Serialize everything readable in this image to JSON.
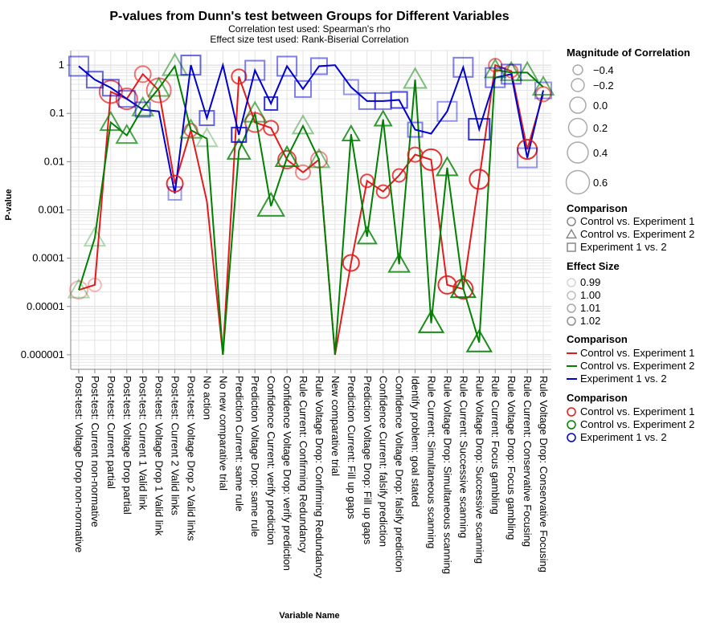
{
  "chart_data": {
    "type": "line",
    "title": "P-values from Dunn's test between Groups for Different Variables",
    "subtitle": [
      "Correlation test used: Spearman's rho",
      "Effect size test used: Rank-Biserial Correlation"
    ],
    "xlabel": "Variable Name",
    "ylabel": "P-value",
    "yscale": "log",
    "ylim": [
      5e-07,
      2
    ],
    "y_ticks": [
      1e-06,
      1e-05,
      0.0001,
      0.001,
      0.01,
      0.1,
      1
    ],
    "y_tick_labels": [
      "0.000001",
      "0.00001",
      "0.0001",
      "0.001",
      "0.01",
      "0.1",
      "1"
    ],
    "grid": true,
    "categories": [
      "Post-test: Voltage Drop non-normative",
      "Post-test: Current non-normative",
      "Post-test: Current partial",
      "Post-test: Voltage Drop partial",
      "Post-test: Current 1 Valid link",
      "Post-test: Voltage Drop 1 Valid link",
      "Post-test: Current 2 Valid links",
      "Post-test: Voltage Drop 2 Valid links",
      "No action",
      "No new comparative trial",
      "Prediction Current: same rule",
      "Prediction Voltage Drop: same rule",
      "Confidence Current: verify prediction",
      "Confidence Voltage Drop: verify prediction",
      "Rule Current: Confirming Redundancy",
      "Rule Voltage Drop: Confirming Redundancy",
      "New comparative trial",
      "Prediction Current: Fill up gaps",
      "Prediction Voltage Drop: Fill up gaps",
      "Confidence Current: falsify prediction",
      "Confidence Voltage Drop: falsify prediction",
      "Identify problem: goal stated",
      "Rule Current: Simultaneous scanning",
      "Rule Voltage Drop: Simultaneous scanning",
      "Rule Current: Successive scanning",
      "Rule Voltage Drop: Successive scanning",
      "Rule Current: Focus gambling",
      "Rule Voltage Drop: Focus gambling",
      "Rule Current: Conservative Focusing",
      "Rule Voltage Drop: Conservative Focusing"
    ],
    "series": [
      {
        "name": "Control vs. Experiment 1",
        "color": "#e41a1c",
        "marker": "circle",
        "values": [
          2.2e-05,
          2.8e-05,
          0.28,
          0.2,
          0.65,
          0.3,
          0.0035,
          0.045,
          0.0015,
          1e-06,
          0.58,
          0.065,
          0.05,
          0.011,
          0.006,
          0.011,
          1e-06,
          8e-05,
          0.004,
          0.0024,
          0.0052,
          0.014,
          0.011,
          2.8e-05,
          2.3e-05,
          0.0043,
          1.0,
          0.75,
          0.018,
          0.25
        ],
        "marker_visible": [
          true,
          true,
          true,
          true,
          true,
          true,
          true,
          true,
          false,
          false,
          true,
          true,
          true,
          true,
          true,
          true,
          false,
          true,
          true,
          true,
          true,
          true,
          true,
          true,
          true,
          true,
          true,
          true,
          true,
          true
        ],
        "marker_opacity": [
          0.3,
          0.3,
          0.7,
          0.7,
          0.6,
          0.6,
          0.9,
          0.6,
          0.3,
          0,
          0.8,
          0.7,
          0.8,
          0.8,
          0.5,
          0.5,
          0,
          0.9,
          0.8,
          0.8,
          0.8,
          0.8,
          0.9,
          0.9,
          0.9,
          0.9,
          0.6,
          0.6,
          0.9,
          0.6
        ],
        "marker_size": [
          11,
          8,
          14,
          13,
          10,
          15,
          10,
          8,
          7,
          0,
          9,
          12,
          9,
          11,
          9,
          10,
          0,
          10,
          8,
          8,
          8,
          9,
          13,
          11,
          12,
          12,
          8,
          8,
          12,
          9
        ]
      },
      {
        "name": "Control vs. Experiment 2",
        "color": "#008000",
        "marker": "triangle",
        "values": [
          2.2e-05,
          0.00026,
          0.065,
          0.035,
          0.13,
          0.33,
          0.95,
          0.045,
          0.03,
          1e-06,
          0.017,
          0.1,
          0.0012,
          0.012,
          0.055,
          0.011,
          1e-06,
          0.037,
          0.00028,
          0.075,
          7.5e-05,
          0.5,
          4.5e-06,
          0.0075,
          2.4e-05,
          1.8e-06,
          0.8,
          0.7,
          0.7,
          0.35
        ],
        "marker_visible": [
          true,
          true,
          true,
          true,
          true,
          true,
          true,
          true,
          true,
          false,
          true,
          true,
          true,
          true,
          true,
          true,
          false,
          true,
          true,
          true,
          true,
          true,
          true,
          true,
          true,
          true,
          true,
          true,
          true,
          true
        ],
        "marker_opacity": [
          0.3,
          0.3,
          0.7,
          0.7,
          0.6,
          0.6,
          0.5,
          0.6,
          0.3,
          0,
          0.8,
          0.6,
          0.8,
          0.8,
          0.4,
          0.5,
          0,
          0.8,
          0.8,
          0.8,
          0.8,
          0.5,
          0.9,
          0.8,
          0.9,
          0.9,
          0.6,
          0.6,
          0.6,
          0.6
        ],
        "marker_size": [
          11,
          11,
          11,
          11,
          11,
          11,
          13,
          11,
          11,
          0,
          12,
          12,
          14,
          12,
          11,
          11,
          0,
          9,
          10,
          9,
          11,
          12,
          13,
          11,
          13,
          13,
          11,
          11,
          11,
          11
        ]
      },
      {
        "name": "Experiment 1 vs. 2",
        "color": "#0000cc",
        "marker": "square",
        "values": [
          0.95,
          0.5,
          0.34,
          0.2,
          0.12,
          0.11,
          0.0022,
          1.0,
          0.08,
          1.0,
          0.036,
          0.78,
          0.16,
          0.95,
          0.32,
          0.95,
          1.0,
          0.35,
          0.18,
          0.18,
          0.19,
          0.046,
          0.038,
          0.11,
          0.9,
          0.047,
          0.55,
          0.65,
          0.012,
          0.3
        ],
        "marker_visible": [
          true,
          true,
          true,
          true,
          true,
          false,
          true,
          true,
          true,
          false,
          true,
          true,
          true,
          true,
          true,
          true,
          false,
          true,
          true,
          true,
          true,
          true,
          false,
          true,
          true,
          true,
          true,
          true,
          true,
          true
        ],
        "marker_opacity": [
          0.5,
          0.6,
          0.6,
          0.5,
          0.5,
          0,
          0.4,
          0.6,
          0.6,
          0,
          0.8,
          0.5,
          0.8,
          0.5,
          0.5,
          0.5,
          0,
          0.4,
          0.5,
          0.5,
          0.7,
          0.5,
          0,
          0.4,
          0.5,
          0.8,
          0.5,
          0.5,
          0.4,
          0.4
        ],
        "marker_size": [
          12,
          10,
          10,
          10,
          9,
          0,
          8,
          12,
          9,
          0,
          9,
          12,
          8,
          12,
          10,
          10,
          0,
          9,
          10,
          10,
          10,
          9,
          0,
          12,
          12,
          13,
          12,
          12,
          12,
          10
        ]
      }
    ],
    "legends": [
      {
        "title": "Magnitude of Correlation",
        "kind": "size",
        "labels": [
          "−0.4",
          "−0.2",
          "0.0",
          "0.2",
          "0.4",
          "0.6"
        ]
      },
      {
        "title": "Comparison",
        "kind": "shape",
        "labels": [
          "Control vs. Experiment 1",
          "Control vs. Experiment 2",
          "Experiment 1 vs. 2"
        ],
        "shapes": [
          "circle",
          "triangle",
          "square"
        ]
      },
      {
        "title": "Effect Size",
        "kind": "opacity",
        "labels": [
          "0.99",
          "1.00",
          "1.01",
          "1.02"
        ]
      },
      {
        "title": "Comparison",
        "kind": "line",
        "labels": [
          "Control vs. Experiment 1",
          "Control vs. Experiment 2",
          "Experiment 1 vs. 2"
        ],
        "colors": [
          "#e41a1c",
          "#008000",
          "#0000cc"
        ]
      },
      {
        "title": "Comparison",
        "kind": "stroke",
        "labels": [
          "Control vs. Experiment 1",
          "Control vs. Experiment 2",
          "Experiment 1 vs. 2"
        ],
        "colors": [
          "#e41a1c",
          "#008000",
          "#0000cc"
        ]
      }
    ],
    "legend_position": "right"
  }
}
